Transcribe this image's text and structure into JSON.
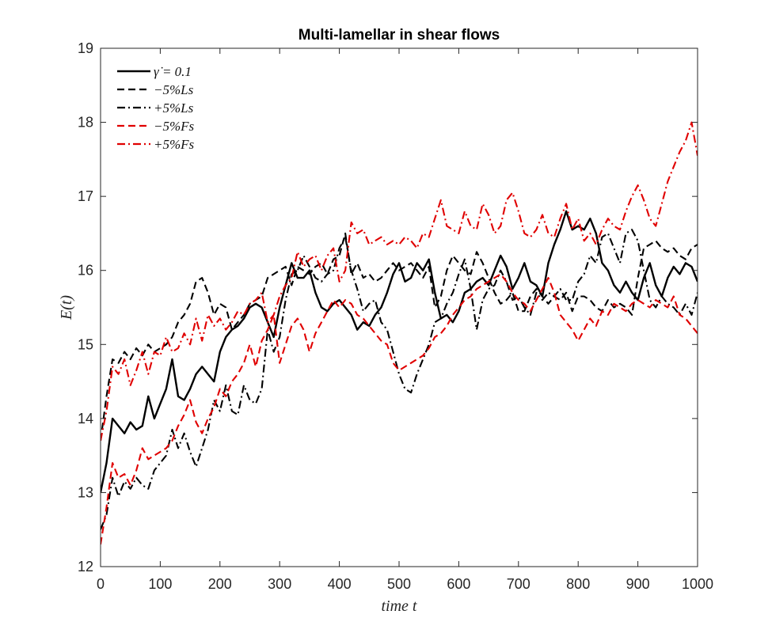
{
  "chart_data": {
    "type": "line",
    "title": "Multi-lamellar in shear flows",
    "xlabel": "time t",
    "ylabel": "E(t)",
    "xlim": [
      0,
      1000
    ],
    "ylim": [
      12,
      19
    ],
    "xticks": [
      "0",
      "100",
      "200",
      "300",
      "400",
      "500",
      "600",
      "700",
      "800",
      "900",
      "1000"
    ],
    "yticks": [
      "12",
      "13",
      "14",
      "15",
      "16",
      "17",
      "18",
      "19"
    ],
    "grid": false,
    "legend_position": "top-left",
    "series": [
      {
        "name": "γ̇ = 0.1",
        "color": "#000000",
        "dash": "solid",
        "x": [
          0,
          10,
          20,
          30,
          40,
          50,
          60,
          70,
          80,
          90,
          100,
          110,
          120,
          130,
          140,
          150,
          160,
          170,
          180,
          190,
          200,
          210,
          220,
          230,
          240,
          250,
          260,
          270,
          280,
          290,
          300,
          310,
          320,
          330,
          340,
          350,
          360,
          370,
          380,
          390,
          400,
          410,
          420,
          430,
          440,
          450,
          460,
          470,
          480,
          490,
          500,
          510,
          520,
          530,
          540,
          550,
          560,
          570,
          580,
          590,
          600,
          610,
          620,
          630,
          640,
          650,
          660,
          670,
          680,
          690,
          700,
          710,
          720,
          730,
          740,
          750,
          760,
          770,
          780,
          790,
          800,
          810,
          820,
          830,
          840,
          850,
          860,
          870,
          880,
          890,
          900,
          910,
          920,
          930,
          940,
          950,
          960,
          970,
          980,
          990,
          1000
        ],
        "y": [
          13.0,
          13.4,
          14.0,
          13.9,
          13.8,
          13.95,
          13.85,
          13.9,
          14.3,
          14.0,
          14.2,
          14.4,
          14.8,
          14.3,
          14.25,
          14.4,
          14.6,
          14.7,
          14.6,
          14.5,
          14.9,
          15.1,
          15.2,
          15.25,
          15.35,
          15.5,
          15.55,
          15.5,
          15.3,
          15.1,
          15.5,
          15.8,
          16.1,
          15.9,
          15.9,
          16.0,
          15.7,
          15.5,
          15.45,
          15.55,
          15.6,
          15.5,
          15.4,
          15.2,
          15.3,
          15.25,
          15.4,
          15.5,
          15.7,
          15.95,
          16.1,
          15.85,
          15.9,
          16.1,
          16.0,
          16.15,
          15.7,
          15.35,
          15.4,
          15.3,
          15.45,
          15.7,
          15.75,
          15.85,
          15.9,
          15.8,
          16.0,
          16.2,
          16.05,
          15.75,
          15.9,
          16.1,
          15.85,
          15.8,
          15.65,
          16.1,
          16.35,
          16.55,
          16.8,
          16.55,
          16.6,
          16.55,
          16.7,
          16.5,
          16.1,
          16.0,
          15.8,
          15.7,
          15.85,
          15.7,
          15.6,
          15.9,
          16.1,
          15.8,
          15.65,
          15.9,
          16.05,
          15.95,
          16.1,
          16.05,
          15.85
        ]
      },
      {
        "name": "−5%Ls",
        "color": "#000000",
        "dash": "dashed",
        "x": [
          0,
          10,
          20,
          30,
          40,
          50,
          60,
          70,
          80,
          90,
          100,
          110,
          120,
          130,
          140,
          150,
          160,
          170,
          180,
          190,
          200,
          210,
          220,
          230,
          240,
          250,
          260,
          270,
          280,
          290,
          300,
          310,
          320,
          330,
          340,
          350,
          360,
          370,
          380,
          390,
          400,
          410,
          420,
          430,
          440,
          450,
          460,
          470,
          480,
          490,
          500,
          510,
          520,
          530,
          540,
          550,
          560,
          570,
          580,
          590,
          600,
          610,
          620,
          630,
          640,
          650,
          660,
          670,
          680,
          690,
          700,
          710,
          720,
          730,
          740,
          750,
          760,
          770,
          780,
          790,
          800,
          810,
          820,
          830,
          840,
          850,
          860,
          870,
          880,
          890,
          900,
          910,
          920,
          930,
          940,
          950,
          960,
          970,
          980,
          990,
          1000
        ],
        "y": [
          13.7,
          14.3,
          14.8,
          14.75,
          14.9,
          14.8,
          14.95,
          14.85,
          15.0,
          14.9,
          14.95,
          15.0,
          15.1,
          15.3,
          15.4,
          15.55,
          15.85,
          15.9,
          15.7,
          15.4,
          15.55,
          15.5,
          15.2,
          15.3,
          15.4,
          15.55,
          15.6,
          15.65,
          15.9,
          15.95,
          16.0,
          16.05,
          15.8,
          16.05,
          16.0,
          15.95,
          16.05,
          16.1,
          15.95,
          16.15,
          16.2,
          16.5,
          15.95,
          16.1,
          15.9,
          15.95,
          15.85,
          15.9,
          16.0,
          16.1,
          16.0,
          16.05,
          16.1,
          16.0,
          15.9,
          16.05,
          15.5,
          15.65,
          16.0,
          16.2,
          16.1,
          16.0,
          15.95,
          16.25,
          16.1,
          15.9,
          15.7,
          15.55,
          15.6,
          15.7,
          15.45,
          15.45,
          15.65,
          15.75,
          15.65,
          15.55,
          15.65,
          15.6,
          15.7,
          15.45,
          15.65,
          15.65,
          15.6,
          15.5,
          15.45,
          15.6,
          15.5,
          15.55,
          15.5,
          15.4,
          15.9,
          16.3,
          16.35,
          16.4,
          16.3,
          16.25,
          16.3,
          16.2,
          16.15,
          16.3,
          16.35
        ]
      },
      {
        "name": "+5%Ls",
        "color": "#000000",
        "dash": "dashdot",
        "x": [
          0,
          10,
          20,
          30,
          40,
          50,
          60,
          70,
          80,
          90,
          100,
          110,
          120,
          130,
          140,
          150,
          160,
          170,
          180,
          190,
          200,
          210,
          220,
          230,
          240,
          250,
          260,
          270,
          280,
          290,
          300,
          310,
          320,
          330,
          340,
          350,
          360,
          370,
          380,
          390,
          400,
          410,
          420,
          430,
          440,
          450,
          460,
          470,
          480,
          490,
          500,
          510,
          520,
          530,
          540,
          550,
          560,
          570,
          580,
          590,
          600,
          610,
          620,
          630,
          640,
          650,
          660,
          670,
          680,
          690,
          700,
          710,
          720,
          730,
          740,
          750,
          760,
          770,
          780,
          790,
          800,
          810,
          820,
          830,
          840,
          850,
          860,
          870,
          880,
          890,
          900,
          910,
          920,
          930,
          940,
          950,
          960,
          970,
          980,
          990,
          1000
        ],
        "y": [
          12.5,
          12.7,
          13.2,
          12.95,
          13.15,
          13.05,
          13.2,
          13.1,
          13.05,
          13.3,
          13.4,
          13.5,
          13.85,
          13.6,
          13.8,
          13.55,
          13.35,
          13.6,
          13.85,
          14.25,
          14.1,
          14.45,
          14.1,
          14.05,
          14.45,
          14.25,
          14.2,
          14.4,
          15.2,
          14.9,
          15.1,
          15.6,
          15.95,
          16.0,
          16.2,
          16.05,
          15.9,
          15.85,
          15.95,
          16.0,
          16.3,
          16.45,
          16.0,
          15.75,
          15.45,
          15.55,
          15.6,
          15.3,
          15.2,
          14.9,
          14.6,
          14.4,
          14.35,
          14.6,
          14.8,
          15.0,
          15.3,
          15.35,
          15.55,
          15.7,
          15.95,
          16.15,
          15.75,
          15.2,
          15.6,
          15.75,
          15.8,
          16.0,
          15.85,
          15.6,
          15.65,
          15.5,
          15.4,
          15.7,
          15.6,
          15.7,
          15.65,
          15.75,
          15.6,
          15.6,
          15.85,
          15.95,
          16.2,
          16.1,
          16.45,
          16.5,
          16.3,
          16.1,
          16.5,
          16.55,
          16.4,
          16.0,
          15.6,
          15.5,
          15.65,
          15.55,
          15.5,
          15.4,
          15.55,
          15.4,
          15.7
        ]
      },
      {
        "name": "−5%Fs",
        "color": "#e00000",
        "dash": "dashed",
        "x": [
          0,
          10,
          20,
          30,
          40,
          50,
          60,
          70,
          80,
          90,
          100,
          110,
          120,
          130,
          140,
          150,
          160,
          170,
          180,
          190,
          200,
          210,
          220,
          230,
          240,
          250,
          260,
          270,
          280,
          290,
          300,
          310,
          320,
          330,
          340,
          350,
          360,
          370,
          380,
          390,
          400,
          410,
          420,
          430,
          440,
          450,
          460,
          470,
          480,
          490,
          500,
          510,
          520,
          530,
          540,
          550,
          560,
          570,
          580,
          590,
          600,
          610,
          620,
          630,
          640,
          650,
          660,
          670,
          680,
          690,
          700,
          710,
          720,
          730,
          740,
          750,
          760,
          770,
          780,
          790,
          800,
          810,
          820,
          830,
          840,
          850,
          860,
          870,
          880,
          890,
          900,
          910,
          920,
          930,
          940,
          950,
          960,
          970,
          980,
          990,
          1000
        ],
        "y": [
          12.3,
          12.8,
          13.4,
          13.2,
          13.25,
          13.1,
          13.3,
          13.6,
          13.45,
          13.5,
          13.55,
          13.6,
          13.7,
          13.9,
          14.05,
          14.25,
          13.95,
          13.8,
          14.0,
          14.15,
          14.4,
          14.3,
          14.5,
          14.6,
          14.75,
          15.0,
          14.7,
          15.05,
          15.2,
          15.4,
          14.75,
          15.0,
          15.25,
          15.35,
          15.2,
          14.9,
          15.15,
          15.3,
          15.45,
          15.6,
          15.5,
          15.6,
          15.55,
          15.4,
          15.35,
          15.25,
          15.15,
          15.05,
          15.0,
          14.75,
          14.65,
          14.7,
          14.75,
          14.8,
          14.85,
          14.95,
          15.1,
          15.15,
          15.25,
          15.4,
          15.5,
          15.6,
          15.65,
          15.75,
          15.8,
          15.85,
          15.9,
          15.95,
          15.85,
          15.7,
          15.6,
          15.55,
          15.45,
          15.6,
          15.75,
          15.9,
          15.7,
          15.4,
          15.3,
          15.2,
          15.05,
          15.2,
          15.35,
          15.25,
          15.45,
          15.4,
          15.55,
          15.5,
          15.45,
          15.55,
          15.6,
          15.55,
          15.5,
          15.6,
          15.55,
          15.5,
          15.65,
          15.4,
          15.35,
          15.25,
          15.15
        ]
      },
      {
        "name": "+5%Fs",
        "color": "#e00000",
        "dash": "dashdot",
        "x": [
          0,
          10,
          20,
          30,
          40,
          50,
          60,
          70,
          80,
          90,
          100,
          110,
          120,
          130,
          140,
          150,
          160,
          170,
          180,
          190,
          200,
          210,
          220,
          230,
          240,
          250,
          260,
          270,
          280,
          290,
          300,
          310,
          320,
          330,
          340,
          350,
          360,
          370,
          380,
          390,
          400,
          410,
          420,
          430,
          440,
          450,
          460,
          470,
          480,
          490,
          500,
          510,
          520,
          530,
          540,
          550,
          560,
          570,
          580,
          590,
          600,
          610,
          620,
          630,
          640,
          650,
          660,
          670,
          680,
          690,
          700,
          710,
          720,
          730,
          740,
          750,
          760,
          770,
          780,
          790,
          800,
          810,
          820,
          830,
          840,
          850,
          860,
          870,
          880,
          890,
          900,
          910,
          920,
          930,
          940,
          950,
          960,
          970,
          980,
          990,
          1000
        ],
        "y": [
          13.7,
          14.1,
          14.7,
          14.6,
          14.8,
          14.45,
          14.65,
          14.9,
          14.6,
          14.9,
          14.85,
          15.1,
          14.9,
          14.95,
          15.15,
          15.0,
          15.35,
          15.05,
          15.4,
          15.25,
          15.35,
          15.2,
          15.3,
          15.45,
          15.4,
          15.55,
          15.6,
          15.7,
          15.3,
          15.4,
          15.65,
          15.8,
          15.9,
          16.25,
          16.05,
          16.15,
          16.2,
          16.0,
          16.2,
          16.3,
          15.85,
          16.0,
          16.65,
          16.5,
          16.55,
          16.35,
          16.4,
          16.45,
          16.35,
          16.4,
          16.35,
          16.45,
          16.4,
          16.3,
          16.5,
          16.45,
          16.7,
          16.95,
          16.6,
          16.55,
          16.5,
          16.8,
          16.6,
          16.55,
          16.9,
          16.75,
          16.5,
          16.6,
          16.95,
          17.05,
          16.8,
          16.5,
          16.45,
          16.55,
          16.75,
          16.5,
          16.45,
          16.7,
          16.9,
          16.55,
          16.7,
          16.4,
          16.5,
          16.35,
          16.55,
          16.7,
          16.6,
          16.55,
          16.8,
          17.0,
          17.15,
          16.95,
          16.7,
          16.6,
          16.9,
          17.2,
          17.4,
          17.6,
          17.75,
          18.0,
          17.55
        ]
      }
    ]
  }
}
